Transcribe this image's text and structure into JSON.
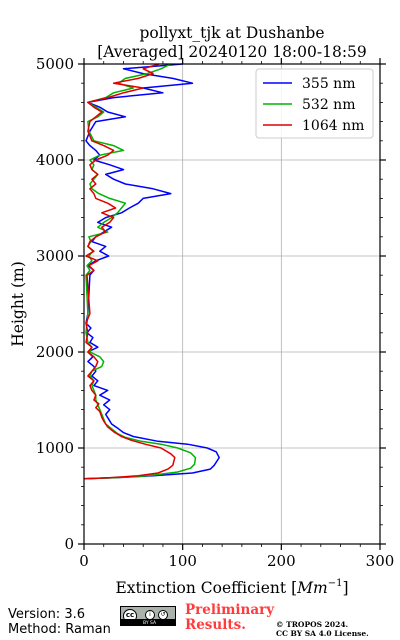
{
  "chart_data": {
    "type": "line",
    "title_line1": "pollyxt_tjk at Dushanbe",
    "title_line2": "[Averaged] 20240120 18:00-18:59",
    "xlabel": "Extinction Coefficient",
    "xlabel_unit_base": "Mm",
    "xlabel_unit_exp": "−1",
    "ylabel": "Height (m)",
    "xlim": [
      0,
      300
    ],
    "ylim": [
      0,
      5000
    ],
    "xticks": [
      0,
      100,
      200,
      300
    ],
    "yticks": [
      0,
      1000,
      2000,
      3000,
      4000,
      5000
    ],
    "grid": true,
    "legend_position": "top-right",
    "series": [
      {
        "name": "355 nm",
        "color": "#0000ff",
        "points": [
          [
            0,
            680
          ],
          [
            30,
            690
          ],
          [
            70,
            710
          ],
          [
            110,
            740
          ],
          [
            128,
            780
          ],
          [
            132,
            820
          ],
          [
            137,
            900
          ],
          [
            134,
            960
          ],
          [
            125,
            1000
          ],
          [
            105,
            1040
          ],
          [
            75,
            1070
          ],
          [
            50,
            1120
          ],
          [
            40,
            1160
          ],
          [
            35,
            1200
          ],
          [
            28,
            1250
          ],
          [
            25,
            1300
          ],
          [
            22,
            1350
          ],
          [
            26,
            1400
          ],
          [
            20,
            1450
          ],
          [
            26,
            1500
          ],
          [
            16,
            1550
          ],
          [
            24,
            1600
          ],
          [
            10,
            1650
          ],
          [
            14,
            1700
          ],
          [
            8,
            1750
          ],
          [
            12,
            1800
          ],
          [
            10,
            1850
          ],
          [
            4,
            1900
          ],
          [
            9,
            1950
          ],
          [
            4,
            2000
          ],
          [
            14,
            2050
          ],
          [
            6,
            2100
          ],
          [
            9,
            2150
          ],
          [
            3,
            2200
          ],
          [
            7,
            2250
          ],
          [
            2,
            2300
          ],
          [
            4,
            2400
          ],
          [
            6,
            2800
          ],
          [
            10,
            2850
          ],
          [
            4,
            2900
          ],
          [
            12,
            2950
          ],
          [
            25,
            3000
          ],
          [
            16,
            3050
          ],
          [
            22,
            3100
          ],
          [
            8,
            3150
          ],
          [
            12,
            3200
          ],
          [
            20,
            3250
          ],
          [
            28,
            3300
          ],
          [
            14,
            3350
          ],
          [
            22,
            3400
          ],
          [
            38,
            3450
          ],
          [
            46,
            3500
          ],
          [
            55,
            3550
          ],
          [
            60,
            3600
          ],
          [
            88,
            3650
          ],
          [
            70,
            3700
          ],
          [
            42,
            3750
          ],
          [
            30,
            3800
          ],
          [
            22,
            3850
          ],
          [
            40,
            3900
          ],
          [
            26,
            3950
          ],
          [
            10,
            4000
          ],
          [
            16,
            4050
          ],
          [
            12,
            4100
          ],
          [
            6,
            4150
          ],
          [
            2,
            4200
          ],
          [
            6,
            4300
          ],
          [
            12,
            4400
          ],
          [
            42,
            4450
          ],
          [
            24,
            4500
          ],
          [
            16,
            4550
          ],
          [
            4,
            4600
          ],
          [
            30,
            4650
          ],
          [
            80,
            4700
          ],
          [
            60,
            4750
          ],
          [
            110,
            4800
          ],
          [
            90,
            4850
          ],
          [
            60,
            4900
          ],
          [
            40,
            4950
          ],
          [
            100,
            5000
          ]
        ]
      },
      {
        "name": "532 nm",
        "color": "#00b400",
        "points": [
          [
            0,
            680
          ],
          [
            30,
            690
          ],
          [
            65,
            710
          ],
          [
            95,
            750
          ],
          [
            108,
            790
          ],
          [
            112,
            830
          ],
          [
            113,
            900
          ],
          [
            108,
            950
          ],
          [
            95,
            1000
          ],
          [
            78,
            1040
          ],
          [
            58,
            1070
          ],
          [
            42,
            1110
          ],
          [
            34,
            1150
          ],
          [
            28,
            1200
          ],
          [
            22,
            1250
          ],
          [
            20,
            1300
          ],
          [
            18,
            1350
          ],
          [
            16,
            1400
          ],
          [
            14,
            1450
          ],
          [
            12,
            1500
          ],
          [
            12,
            1550
          ],
          [
            10,
            1600
          ],
          [
            8,
            1650
          ],
          [
            10,
            1700
          ],
          [
            6,
            1750
          ],
          [
            8,
            1800
          ],
          [
            18,
            1850
          ],
          [
            20,
            1900
          ],
          [
            16,
            1950
          ],
          [
            6,
            2000
          ],
          [
            8,
            2050
          ],
          [
            4,
            2100
          ],
          [
            2,
            2200
          ],
          [
            4,
            2400
          ],
          [
            2,
            2800
          ],
          [
            6,
            2850
          ],
          [
            3,
            2900
          ],
          [
            8,
            2950
          ],
          [
            5,
            3000
          ],
          [
            9,
            3050
          ],
          [
            4,
            3100
          ],
          [
            7,
            3150
          ],
          [
            5,
            3200
          ],
          [
            24,
            3250
          ],
          [
            14,
            3300
          ],
          [
            20,
            3350
          ],
          [
            28,
            3400
          ],
          [
            34,
            3450
          ],
          [
            38,
            3500
          ],
          [
            42,
            3550
          ],
          [
            26,
            3600
          ],
          [
            15,
            3650
          ],
          [
            8,
            3700
          ],
          [
            6,
            3750
          ],
          [
            10,
            3800
          ],
          [
            14,
            3850
          ],
          [
            8,
            3900
          ],
          [
            10,
            3950
          ],
          [
            6,
            4000
          ],
          [
            16,
            4050
          ],
          [
            40,
            4100
          ],
          [
            30,
            4150
          ],
          [
            10,
            4200
          ],
          [
            5,
            4300
          ],
          [
            4,
            4400
          ],
          [
            14,
            4450
          ],
          [
            20,
            4500
          ],
          [
            12,
            4550
          ],
          [
            4,
            4600
          ],
          [
            22,
            4650
          ],
          [
            30,
            4700
          ],
          [
            50,
            4750
          ],
          [
            35,
            4800
          ],
          [
            42,
            4850
          ],
          [
            64,
            4900
          ],
          [
            78,
            4950
          ],
          [
            88,
            5000
          ]
        ]
      },
      {
        "name": "1064 nm",
        "color": "#e00000",
        "points": [
          [
            0,
            680
          ],
          [
            25,
            690
          ],
          [
            55,
            710
          ],
          [
            75,
            740
          ],
          [
            85,
            780
          ],
          [
            90,
            820
          ],
          [
            92,
            900
          ],
          [
            88,
            940
          ],
          [
            78,
            1000
          ],
          [
            62,
            1040
          ],
          [
            48,
            1080
          ],
          [
            38,
            1120
          ],
          [
            30,
            1170
          ],
          [
            24,
            1220
          ],
          [
            20,
            1280
          ],
          [
            18,
            1320
          ],
          [
            16,
            1380
          ],
          [
            12,
            1420
          ],
          [
            15,
            1460
          ],
          [
            10,
            1500
          ],
          [
            12,
            1550
          ],
          [
            8,
            1600
          ],
          [
            6,
            1650
          ],
          [
            10,
            1700
          ],
          [
            4,
            1750
          ],
          [
            8,
            1800
          ],
          [
            12,
            1850
          ],
          [
            14,
            1900
          ],
          [
            10,
            1950
          ],
          [
            4,
            2000
          ],
          [
            8,
            2050
          ],
          [
            2,
            2100
          ],
          [
            4,
            2200
          ],
          [
            2,
            2300
          ],
          [
            6,
            2400
          ],
          [
            3,
            2800
          ],
          [
            10,
            2850
          ],
          [
            5,
            2900
          ],
          [
            14,
            2950
          ],
          [
            2,
            3000
          ],
          [
            10,
            3050
          ],
          [
            4,
            3100
          ],
          [
            6,
            3150
          ],
          [
            12,
            3200
          ],
          [
            22,
            3250
          ],
          [
            18,
            3300
          ],
          [
            26,
            3350
          ],
          [
            30,
            3400
          ],
          [
            18,
            3450
          ],
          [
            32,
            3500
          ],
          [
            24,
            3550
          ],
          [
            12,
            3600
          ],
          [
            10,
            3650
          ],
          [
            6,
            3700
          ],
          [
            12,
            3750
          ],
          [
            8,
            3800
          ],
          [
            14,
            3850
          ],
          [
            8,
            3900
          ],
          [
            6,
            3950
          ],
          [
            12,
            4000
          ],
          [
            24,
            4050
          ],
          [
            30,
            4100
          ],
          [
            20,
            4150
          ],
          [
            8,
            4200
          ],
          [
            4,
            4300
          ],
          [
            6,
            4400
          ],
          [
            12,
            4450
          ],
          [
            18,
            4500
          ],
          [
            10,
            4550
          ],
          [
            4,
            4600
          ],
          [
            24,
            4650
          ],
          [
            40,
            4700
          ],
          [
            60,
            4750
          ],
          [
            30,
            4800
          ],
          [
            55,
            4850
          ],
          [
            70,
            4900
          ],
          [
            60,
            4950
          ],
          [
            76,
            5000
          ]
        ]
      }
    ]
  },
  "footer": {
    "version": "Version: 3.6",
    "method": "Method: Raman",
    "preliminary_line1": "Preliminary",
    "preliminary_line2": "Results.",
    "copyright_line1": "© TROPOS 2024.",
    "copyright_line2": "CC BY SA 4.0 License.",
    "cc_strip": "BY SA"
  }
}
